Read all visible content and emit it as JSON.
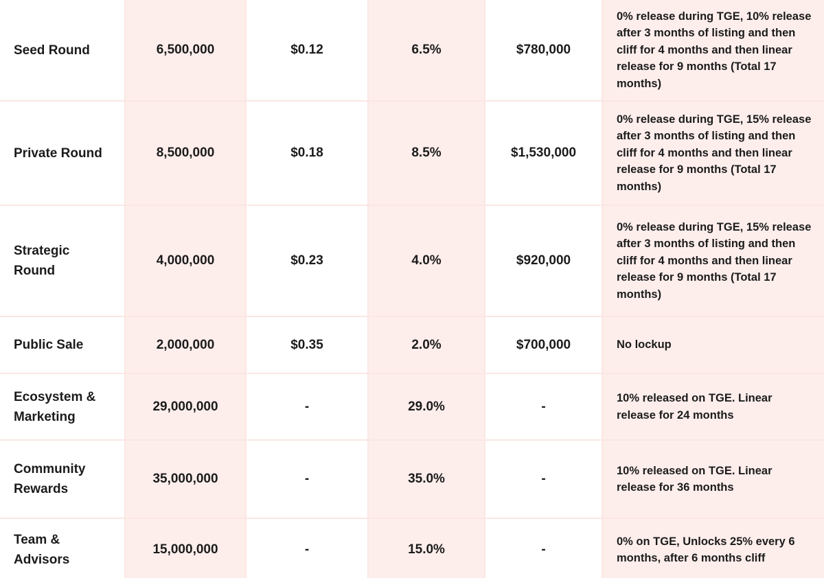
{
  "table": {
    "rows": [
      [
        "Seed Round",
        "6,500,000",
        "$0.12",
        "6.5%",
        "$780,000",
        "0% release during TGE, 10% release after 3 months of listing and then cliff for 4 months and then linear release for 9 months (Total 17 months)"
      ],
      [
        "Private Round",
        "8,500,000",
        "$0.18",
        "8.5%",
        "$1,530,000",
        "0% release during TGE, 15% release after 3 months of listing and then cliff for 4 months and then linear release for 9 months (Total 17 months)"
      ],
      [
        "Strategic Round",
        "4,000,000",
        "$0.23",
        "4.0%",
        "$920,000",
        "0% release during TGE, 15% release after 3 months of listing and then cliff for 4 months and then linear release for 9 months (Total 17 months)"
      ],
      [
        "Public Sale",
        "2,000,000",
        "$0.35",
        "2.0%",
        "$700,000",
        "No lockup"
      ],
      [
        "Ecosystem & Marketing",
        "29,000,000",
        "-",
        "29.0%",
        "-",
        "10% released on TGE. Linear release for 24 months"
      ],
      [
        "Community Rewards",
        "35,000,000",
        "-",
        "35.0%",
        "-",
        "10% released on TGE. Linear release for 36 months"
      ],
      [
        "Team & Advisors",
        "15,000,000",
        "-",
        "15.0%",
        "-",
        "0% on TGE, Unlocks 25% every 6 months, after 6 months cliff"
      ]
    ]
  }
}
